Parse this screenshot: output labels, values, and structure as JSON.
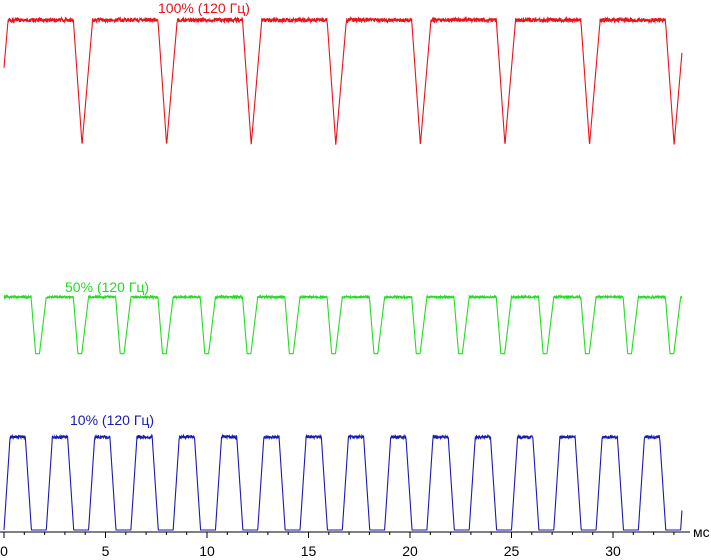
{
  "chart_data": {
    "type": "line",
    "xlabel": "мс",
    "xlim": [
      0,
      33.4
    ],
    "xticks": [
      0,
      5,
      10,
      15,
      20,
      25,
      30
    ],
    "xtick_labels": [
      "0",
      "5",
      "10",
      "15",
      "20",
      "25",
      "30"
    ],
    "grid": false,
    "series": [
      {
        "name": "100% (120 Гц)",
        "color": "#e8141c",
        "waveform": {
          "period_ms": 4.1667,
          "phase_ms": 0.2,
          "high_level": 100,
          "low_level": 4,
          "shape": "high plateau with narrow V-shaped dips (PWM off-time)",
          "dip_width_ms": 0.95
        }
      },
      {
        "name": "50% (120 Гц)",
        "color": "#22dd22",
        "waveform": {
          "period_ms": 2.0833,
          "phase_ms": 0.0,
          "high_level": 100,
          "low_level": 10,
          "shape": "high plateau with short trapezoidal dips",
          "dip_width_ms": 0.75
        }
      },
      {
        "name": "10% (120 Гц)",
        "color": "#1a1ab4",
        "waveform": {
          "period_ms": 2.0833,
          "phase_ms": 0.0,
          "high_level": 100,
          "low_level": 0,
          "shape": "trapezoidal pulses, roughly 50% duty",
          "rise_ms": 0.3,
          "top_ms": 0.75,
          "fall_ms": 0.3
        }
      }
    ]
  }
}
